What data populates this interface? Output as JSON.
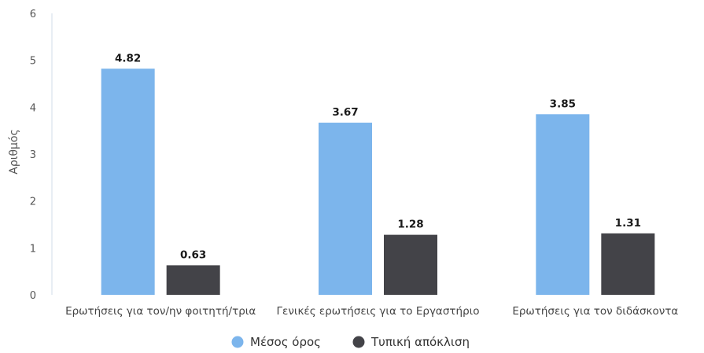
{
  "chart_data": {
    "type": "bar",
    "title": "",
    "xlabel": "",
    "ylabel": "Αριθμός",
    "ylim": [
      0,
      6
    ],
    "yticks": [
      0,
      1,
      2,
      3,
      4,
      5,
      6
    ],
    "grid": false,
    "legend_position": "bottom-center",
    "categories": [
      "Ερωτήσεις για τον/ην φοιτητή/τρια",
      "Γενικές ερωτήσεις για το Εργαστήριο",
      "Ερωτήσεις για τον διδάσκοντα"
    ],
    "series": [
      {
        "name": "Μέσος όρος",
        "color": "#7cb5ec",
        "values": [
          4.82,
          3.67,
          3.85
        ]
      },
      {
        "name": "Τυπική απόκλιση",
        "color": "#434348",
        "values": [
          0.63,
          1.28,
          1.31
        ]
      }
    ]
  }
}
